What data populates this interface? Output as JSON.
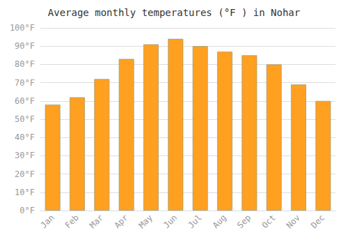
{
  "chart_data": {
    "type": "bar",
    "title": "Average monthly temperatures (°F ) in Nohar",
    "categories": [
      "Jan",
      "Feb",
      "Mar",
      "Apr",
      "May",
      "Jun",
      "Jul",
      "Aug",
      "Sep",
      "Oct",
      "Nov",
      "Dec"
    ],
    "values": [
      58,
      62,
      72,
      83,
      91,
      94,
      90,
      87,
      85,
      80,
      69,
      60
    ],
    "color": "#FFA020",
    "ylim": [
      0,
      100
    ],
    "yticks": [
      {
        "value": 0,
        "label": "0°F"
      },
      {
        "value": 10,
        "label": "10°F"
      },
      {
        "value": 20,
        "label": "20°F"
      },
      {
        "value": 30,
        "label": "30°F"
      },
      {
        "value": 40,
        "label": "40°F"
      },
      {
        "value": 50,
        "label": "50°F"
      },
      {
        "value": 60,
        "label": "60°F"
      },
      {
        "value": 70,
        "label": "70°F"
      },
      {
        "value": 80,
        "label": "80°F"
      },
      {
        "value": 90,
        "label": "90°F"
      },
      {
        "value": 100,
        "label": "100°F"
      }
    ],
    "grid": true
  }
}
